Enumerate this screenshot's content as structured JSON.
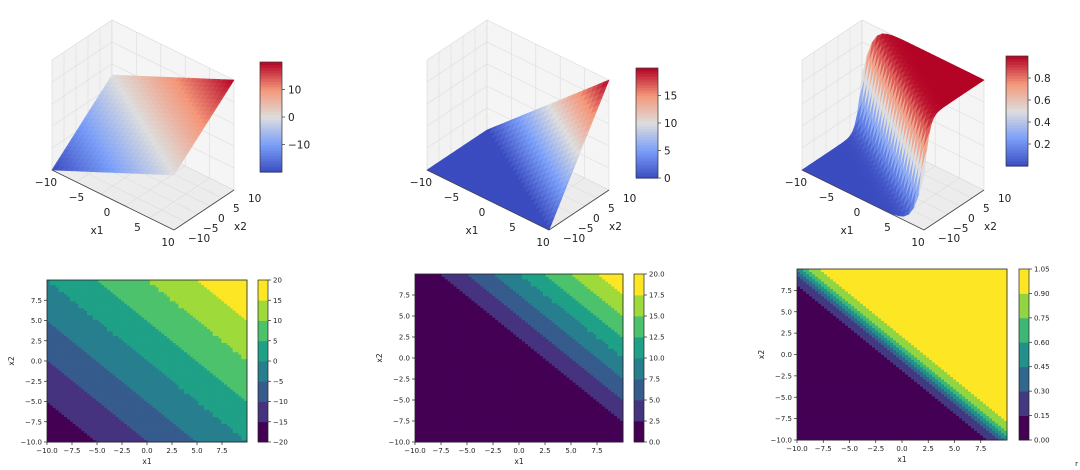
{
  "chart_data": [
    {
      "type": "surface3d",
      "function": "x1 + x2",
      "xlabel": "x1",
      "ylabel": "x2",
      "x_ticks": [
        "−10",
        "−5",
        "0",
        "5",
        "10"
      ],
      "y_ticks": [
        "−10",
        "−5",
        "0",
        "5",
        "10"
      ],
      "xlim": [
        -10,
        10
      ],
      "ylim": [
        -10,
        10
      ],
      "zlim": [
        -20,
        20
      ],
      "colormap": "coolwarm",
      "colorbar": {
        "ticks": [
          "−10",
          "0",
          "10"
        ],
        "tick_values": [
          -10,
          0,
          10
        ],
        "range": [
          -20,
          20
        ]
      }
    },
    {
      "type": "surface3d",
      "function": "max(0, x1 + x2)",
      "xlabel": "x1",
      "ylabel": "x2",
      "x_ticks": [
        "−10",
        "−5",
        "0",
        "5",
        "10"
      ],
      "y_ticks": [
        "−10",
        "−5",
        "0",
        "5",
        "10"
      ],
      "xlim": [
        -10,
        10
      ],
      "ylim": [
        -10,
        10
      ],
      "zlim": [
        0,
        20
      ],
      "colormap": "coolwarm",
      "colorbar": {
        "ticks": [
          "0",
          "5",
          "10",
          "15"
        ],
        "tick_values": [
          0,
          5,
          10,
          15
        ],
        "range": [
          0,
          20
        ]
      }
    },
    {
      "type": "surface3d",
      "function": "sigmoid(x1 + x2)",
      "xlabel": "x1",
      "ylabel": "x2",
      "x_ticks": [
        "−10",
        "−5",
        "0",
        "5",
        "10"
      ],
      "y_ticks": [
        "−10",
        "−5",
        "0",
        "5",
        "10"
      ],
      "xlim": [
        -10,
        10
      ],
      "ylim": [
        -10,
        10
      ],
      "zlim": [
        0,
        1
      ],
      "colormap": "coolwarm",
      "colorbar": {
        "ticks": [
          "0.2",
          "0.4",
          "0.6",
          "0.8"
        ],
        "tick_values": [
          0.2,
          0.4,
          0.6,
          0.8
        ],
        "range": [
          0,
          1
        ]
      }
    },
    {
      "type": "contourf",
      "function": "x1 + x2",
      "xlabel": "x1",
      "ylabel": "x2",
      "xlim": [
        -10,
        10
      ],
      "ylim": [
        -10,
        10
      ],
      "x_ticks": [
        "−10.0",
        "−7.5",
        "−5.0",
        "−2.5",
        "0.0",
        "2.5",
        "5.0",
        "7.5"
      ],
      "x_tick_values": [
        -10,
        -7.5,
        -5,
        -2.5,
        0,
        2.5,
        5,
        7.5
      ],
      "y_ticks": [
        "−10.0",
        "−7.5",
        "−5.0",
        "−2.5",
        "0.0",
        "2.5",
        "5.0",
        "7.5"
      ],
      "y_tick_values": [
        -10,
        -7.5,
        -5,
        -2.5,
        0,
        2.5,
        5,
        7.5
      ],
      "colormap": "viridis",
      "levels": [
        -20,
        -15,
        -10,
        -5,
        0,
        5,
        10,
        15,
        20
      ],
      "colorbar_ticks": [
        "−20",
        "−15",
        "−10",
        "−5",
        "0",
        "5",
        "10",
        "15",
        "20"
      ]
    },
    {
      "type": "contourf",
      "function": "max(0, x1 + x2)",
      "xlabel": "x1",
      "ylabel": "x2",
      "xlim": [
        -10,
        10
      ],
      "ylim": [
        -10,
        10
      ],
      "x_ticks": [
        "−10.0",
        "−7.5",
        "−5.0",
        "−2.5",
        "0.0",
        "2.5",
        "5.0",
        "7.5"
      ],
      "x_tick_values": [
        -10,
        -7.5,
        -5,
        -2.5,
        0,
        2.5,
        5,
        7.5
      ],
      "y_ticks": [
        "−10.0",
        "−7.5",
        "−5.0",
        "−2.5",
        "0.0",
        "2.5",
        "5.0",
        "7.5"
      ],
      "y_tick_values": [
        -10,
        -7.5,
        -5,
        -2.5,
        0,
        2.5,
        5,
        7.5
      ],
      "colormap": "viridis",
      "levels": [
        0,
        2.5,
        5,
        7.5,
        10,
        12.5,
        15,
        17.5,
        20
      ],
      "colorbar_ticks": [
        "0.0",
        "2.5",
        "5.0",
        "7.5",
        "10.0",
        "12.5",
        "15.0",
        "17.5",
        "20.0"
      ]
    },
    {
      "type": "contourf",
      "function": "sigmoid(x1 + x2)",
      "xlabel": "x1",
      "ylabel": "x2",
      "xlim": [
        -10,
        10
      ],
      "ylim": [
        -10,
        10
      ],
      "x_ticks": [
        "−10.0",
        "−7.5",
        "−5.0",
        "−2.5",
        "0.0",
        "2.5",
        "5.0",
        "7.5"
      ],
      "x_tick_values": [
        -10,
        -7.5,
        -5,
        -2.5,
        0,
        2.5,
        5,
        7.5
      ],
      "y_ticks": [
        "−10.0",
        "−7.5",
        "−5.0",
        "−2.5",
        "0.0",
        "2.5",
        "5.0",
        "7.5"
      ],
      "y_tick_values": [
        -10,
        -7.5,
        -5,
        -2.5,
        0,
        2.5,
        5,
        7.5
      ],
      "colormap": "viridis",
      "levels": [
        0,
        0.15,
        0.3,
        0.45,
        0.6,
        0.75,
        0.9,
        1.05
      ],
      "colorbar_ticks": [
        "0.00",
        "0.15",
        "0.30",
        "0.45",
        "0.60",
        "0.75",
        "0.90",
        "1.05"
      ]
    }
  ],
  "watermark": "r"
}
